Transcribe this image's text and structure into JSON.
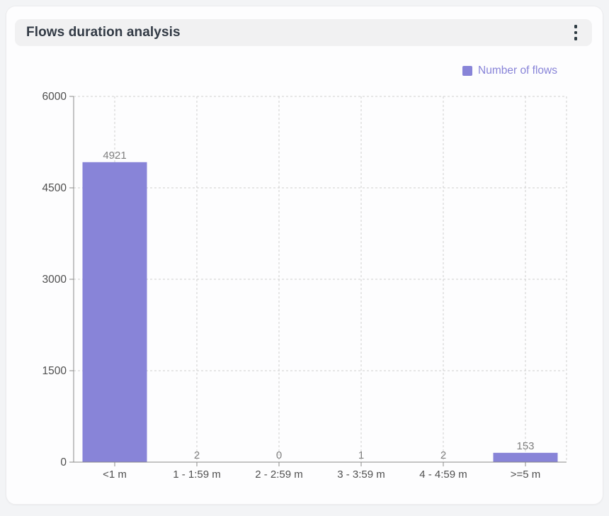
{
  "header": {
    "title": "Flows duration analysis"
  },
  "legend": {
    "label": "Number of flows",
    "swatch_color": "#8884d8"
  },
  "chart_data": {
    "type": "bar",
    "title": "Flows duration analysis",
    "categories": [
      "<1 m",
      "1 - 1:59 m",
      "2 - 2:59 m",
      "3 - 3:59 m",
      "4 - 4:59 m",
      ">=5 m"
    ],
    "series": [
      {
        "name": "Number of flows",
        "color": "#8884d8",
        "values": [
          4921,
          2,
          0,
          1,
          2,
          153
        ]
      }
    ],
    "show_value_labels": true,
    "xlabel": "",
    "ylabel": "",
    "ylim": [
      0,
      6000
    ],
    "yticks": [
      0,
      1500,
      3000,
      4500,
      6000
    ],
    "grid": {
      "visible": true,
      "style": "dashed"
    },
    "legend_position": "top-right"
  },
  "style": {
    "page_bg": "#f3f4f6",
    "card_bg": "#fdfdfe",
    "header_bg": "#f1f1f2",
    "title_color": "#323a45",
    "kebab_color": "#2e3b42",
    "bar_color": "#8884d8",
    "grid_color": "#cfcfcf",
    "axis_color": "#8a8a8a",
    "tick_label_color": "#4f4f4f",
    "value_label_color": "#7f7f7f",
    "legend_text_color": "#8884d8"
  }
}
